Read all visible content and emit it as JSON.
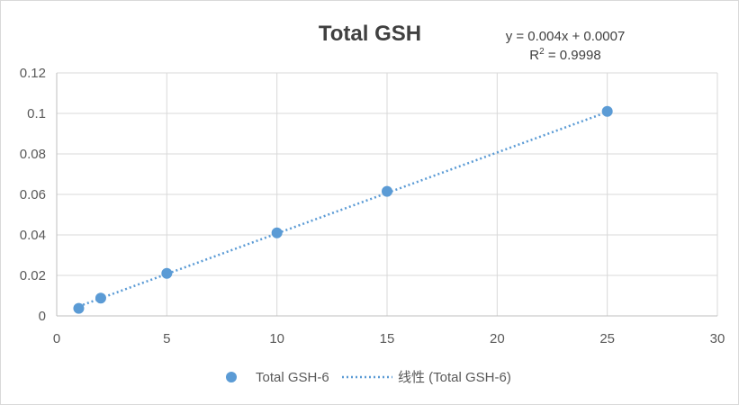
{
  "chart_data": {
    "type": "scatter",
    "title": "Total GSH",
    "xlabel": "",
    "ylabel": "",
    "xlim": [
      0,
      30
    ],
    "ylim": [
      0,
      0.12
    ],
    "x_ticks": [
      0,
      5,
      10,
      15,
      20,
      25,
      30
    ],
    "y_ticks": [
      0,
      0.02,
      0.04,
      0.06,
      0.08,
      0.1,
      0.12
    ],
    "x_tick_labels": [
      "0",
      "5",
      "10",
      "15",
      "20",
      "25",
      "30"
    ],
    "y_tick_labels": [
      "0",
      "0.02",
      "0.04",
      "0.06",
      "0.08",
      "0.1",
      "0.12"
    ],
    "grid": true,
    "legend_position": "bottom",
    "series": [
      {
        "name": "Total GSH-6",
        "color": "#5b9bd5",
        "x": [
          1,
          2,
          5,
          10,
          15,
          25
        ],
        "y": [
          0.0037,
          0.0088,
          0.021,
          0.041,
          0.0615,
          0.101
        ]
      }
    ],
    "trendline": {
      "name": "线性 (Total GSH-6)",
      "color": "#5b9bd5",
      "slope": 0.004,
      "intercept": 0.0007,
      "x_range": [
        1,
        25
      ],
      "equation_prefix": "y = 0.004x + 0.0007",
      "r2_label": "R",
      "r2_sup": "2",
      "r2_value": " = 0.9998"
    }
  }
}
